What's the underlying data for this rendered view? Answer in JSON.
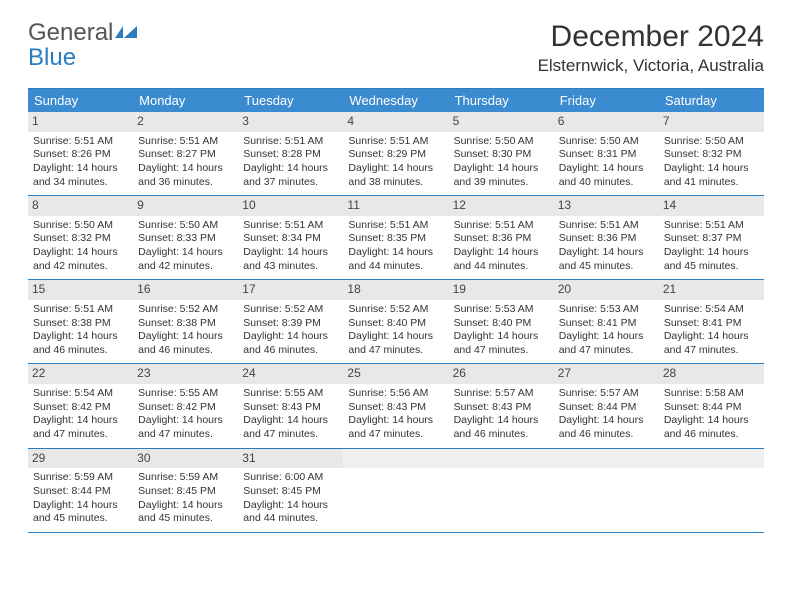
{
  "logo": {
    "line1": "General",
    "line2": "Blue"
  },
  "title": "December 2024",
  "location": "Elsternwick, Victoria, Australia",
  "colors": {
    "header_bg": "#3a8bcf",
    "header_border": "#2a7bbf",
    "daynum_bg": "#e8e8e8",
    "text": "#333333",
    "logo_gray": "#555555",
    "logo_blue": "#2a7bbf"
  },
  "day_names": [
    "Sunday",
    "Monday",
    "Tuesday",
    "Wednesday",
    "Thursday",
    "Friday",
    "Saturday"
  ],
  "weeks": [
    [
      {
        "n": "1",
        "sr": "5:51 AM",
        "ss": "8:26 PM",
        "dl": "14 hours and 34 minutes."
      },
      {
        "n": "2",
        "sr": "5:51 AM",
        "ss": "8:27 PM",
        "dl": "14 hours and 36 minutes."
      },
      {
        "n": "3",
        "sr": "5:51 AM",
        "ss": "8:28 PM",
        "dl": "14 hours and 37 minutes."
      },
      {
        "n": "4",
        "sr": "5:51 AM",
        "ss": "8:29 PM",
        "dl": "14 hours and 38 minutes."
      },
      {
        "n": "5",
        "sr": "5:50 AM",
        "ss": "8:30 PM",
        "dl": "14 hours and 39 minutes."
      },
      {
        "n": "6",
        "sr": "5:50 AM",
        "ss": "8:31 PM",
        "dl": "14 hours and 40 minutes."
      },
      {
        "n": "7",
        "sr": "5:50 AM",
        "ss": "8:32 PM",
        "dl": "14 hours and 41 minutes."
      }
    ],
    [
      {
        "n": "8",
        "sr": "5:50 AM",
        "ss": "8:32 PM",
        "dl": "14 hours and 42 minutes."
      },
      {
        "n": "9",
        "sr": "5:50 AM",
        "ss": "8:33 PM",
        "dl": "14 hours and 42 minutes."
      },
      {
        "n": "10",
        "sr": "5:51 AM",
        "ss": "8:34 PM",
        "dl": "14 hours and 43 minutes."
      },
      {
        "n": "11",
        "sr": "5:51 AM",
        "ss": "8:35 PM",
        "dl": "14 hours and 44 minutes."
      },
      {
        "n": "12",
        "sr": "5:51 AM",
        "ss": "8:36 PM",
        "dl": "14 hours and 44 minutes."
      },
      {
        "n": "13",
        "sr": "5:51 AM",
        "ss": "8:36 PM",
        "dl": "14 hours and 45 minutes."
      },
      {
        "n": "14",
        "sr": "5:51 AM",
        "ss": "8:37 PM",
        "dl": "14 hours and 45 minutes."
      }
    ],
    [
      {
        "n": "15",
        "sr": "5:51 AM",
        "ss": "8:38 PM",
        "dl": "14 hours and 46 minutes."
      },
      {
        "n": "16",
        "sr": "5:52 AM",
        "ss": "8:38 PM",
        "dl": "14 hours and 46 minutes."
      },
      {
        "n": "17",
        "sr": "5:52 AM",
        "ss": "8:39 PM",
        "dl": "14 hours and 46 minutes."
      },
      {
        "n": "18",
        "sr": "5:52 AM",
        "ss": "8:40 PM",
        "dl": "14 hours and 47 minutes."
      },
      {
        "n": "19",
        "sr": "5:53 AM",
        "ss": "8:40 PM",
        "dl": "14 hours and 47 minutes."
      },
      {
        "n": "20",
        "sr": "5:53 AM",
        "ss": "8:41 PM",
        "dl": "14 hours and 47 minutes."
      },
      {
        "n": "21",
        "sr": "5:54 AM",
        "ss": "8:41 PM",
        "dl": "14 hours and 47 minutes."
      }
    ],
    [
      {
        "n": "22",
        "sr": "5:54 AM",
        "ss": "8:42 PM",
        "dl": "14 hours and 47 minutes."
      },
      {
        "n": "23",
        "sr": "5:55 AM",
        "ss": "8:42 PM",
        "dl": "14 hours and 47 minutes."
      },
      {
        "n": "24",
        "sr": "5:55 AM",
        "ss": "8:43 PM",
        "dl": "14 hours and 47 minutes."
      },
      {
        "n": "25",
        "sr": "5:56 AM",
        "ss": "8:43 PM",
        "dl": "14 hours and 47 minutes."
      },
      {
        "n": "26",
        "sr": "5:57 AM",
        "ss": "8:43 PM",
        "dl": "14 hours and 46 minutes."
      },
      {
        "n": "27",
        "sr": "5:57 AM",
        "ss": "8:44 PM",
        "dl": "14 hours and 46 minutes."
      },
      {
        "n": "28",
        "sr": "5:58 AM",
        "ss": "8:44 PM",
        "dl": "14 hours and 46 minutes."
      }
    ],
    [
      {
        "n": "29",
        "sr": "5:59 AM",
        "ss": "8:44 PM",
        "dl": "14 hours and 45 minutes."
      },
      {
        "n": "30",
        "sr": "5:59 AM",
        "ss": "8:45 PM",
        "dl": "14 hours and 45 minutes."
      },
      {
        "n": "31",
        "sr": "6:00 AM",
        "ss": "8:45 PM",
        "dl": "14 hours and 44 minutes."
      },
      null,
      null,
      null,
      null
    ]
  ],
  "labels": {
    "sunrise": "Sunrise:",
    "sunset": "Sunset:",
    "daylight": "Daylight:"
  }
}
